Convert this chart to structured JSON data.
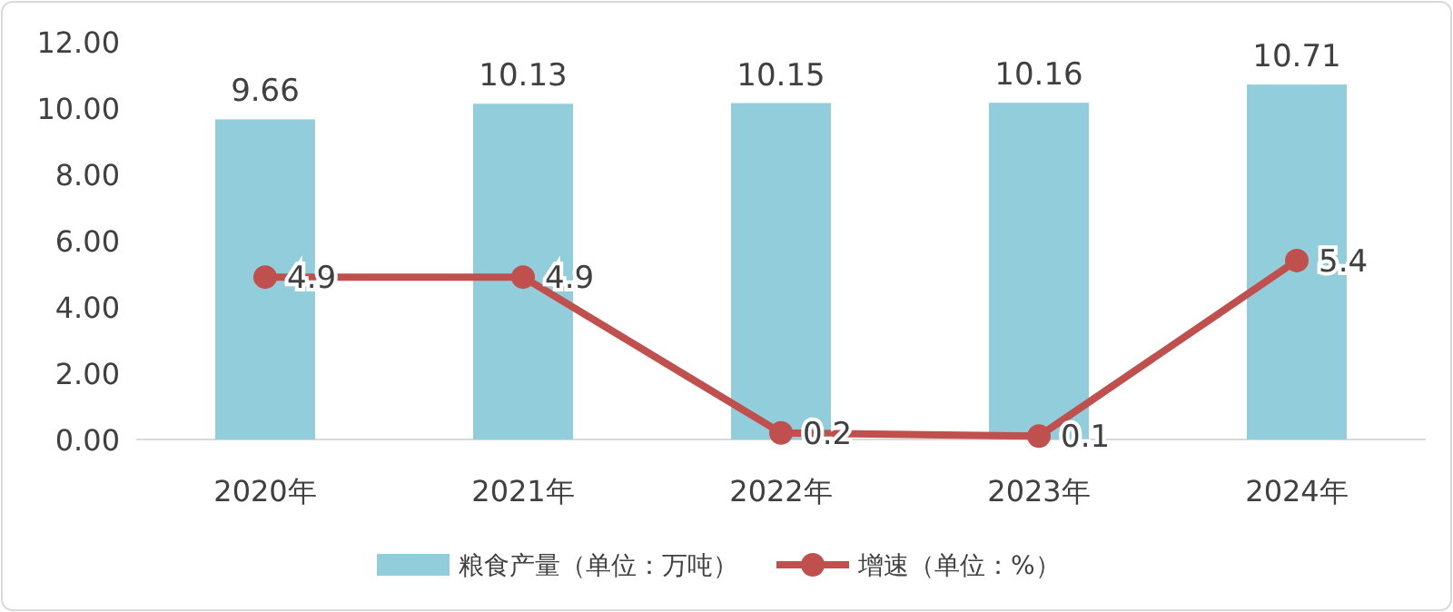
{
  "chart_data": {
    "type": "bar",
    "categories": [
      "2020年",
      "2021年",
      "2022年",
      "2023年",
      "2024年"
    ],
    "series": [
      {
        "name": "粮食产量（单位：万吨）",
        "color": "#92cddc",
        "values": [
          9.66,
          10.13,
          10.15,
          10.16,
          10.71
        ]
      },
      {
        "name": "增速（单位：%）",
        "type": "line",
        "color": "#c0504d",
        "marker": "circle",
        "values": [
          4.9,
          4.9,
          0.2,
          0.1,
          5.4
        ]
      }
    ],
    "ylim": [
      0,
      12
    ],
    "yticks": [
      {
        "value": 0,
        "label": "0.00"
      },
      {
        "value": 2,
        "label": "2.00"
      },
      {
        "value": 4,
        "label": "4.00"
      },
      {
        "value": 6,
        "label": "6.00"
      },
      {
        "value": 8,
        "label": "8.00"
      },
      {
        "value": 10,
        "label": "10.00"
      },
      {
        "value": 12,
        "label": "12.00"
      }
    ],
    "data_labels": true,
    "legend": "bottom"
  }
}
